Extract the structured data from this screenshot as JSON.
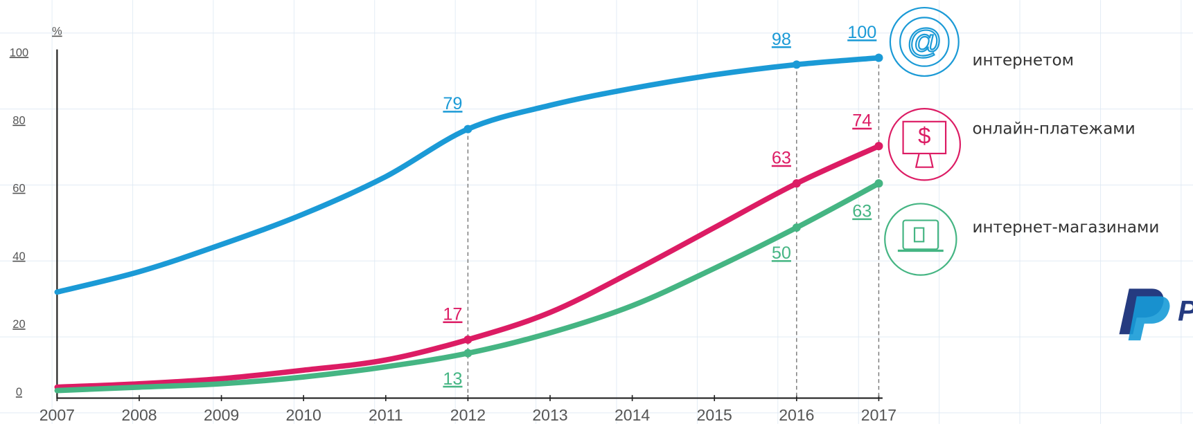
{
  "chart_data": {
    "type": "line",
    "y_label": "%",
    "x": [
      2007,
      2008,
      2009,
      2010,
      2011,
      2012,
      2013,
      2014,
      2015,
      2016,
      2017
    ],
    "xlim": [
      2007,
      2017
    ],
    "xticks": [
      2007,
      2008,
      2009,
      2010,
      2011,
      2012,
      2013,
      2014,
      2015,
      2016,
      2017
    ],
    "ylim": [
      0,
      100
    ],
    "yticks": [
      0,
      20,
      40,
      60,
      80,
      100
    ],
    "series": [
      {
        "name": "интернетом",
        "color": "#1b9ad6",
        "values": [
          31,
          37,
          45,
          54,
          65,
          79,
          86,
          91,
          95,
          98,
          100
        ],
        "value_labels": [
          null,
          null,
          null,
          null,
          null,
          "79",
          null,
          null,
          null,
          "98",
          "100"
        ]
      },
      {
        "name": "онлайн-платежами",
        "color": "#dc1c64",
        "values": [
          3,
          4,
          5.5,
          8,
          11,
          17,
          25,
          37,
          50,
          63,
          74
        ],
        "value_labels": [
          null,
          null,
          null,
          null,
          null,
          "17",
          null,
          null,
          null,
          "63",
          "74"
        ]
      },
      {
        "name": "интернет-магазинами",
        "color": "#45b583",
        "values": [
          2,
          3,
          4,
          6,
          9,
          13,
          19,
          27,
          38,
          50,
          63
        ],
        "value_labels": [
          null,
          null,
          null,
          null,
          null,
          "13",
          null,
          null,
          null,
          "50",
          "63"
        ]
      }
    ]
  },
  "logo_text": "P"
}
